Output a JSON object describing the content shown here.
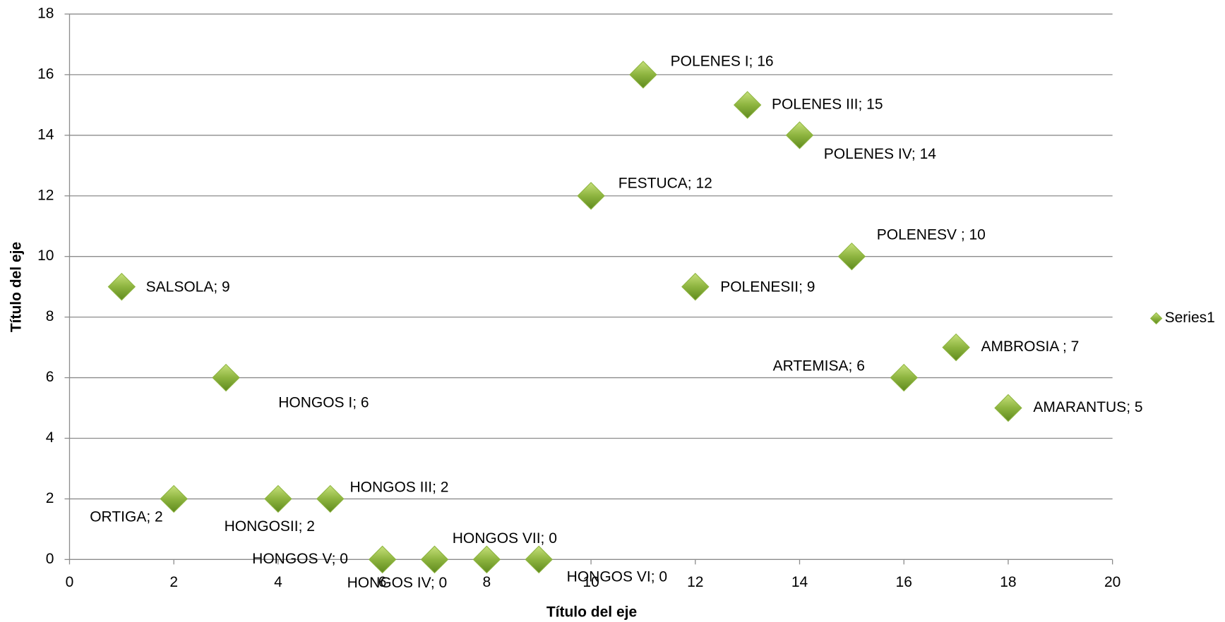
{
  "chart_data": {
    "type": "scatter",
    "x_label": "Título del eje",
    "y_label": "Título del eje",
    "xlim": [
      0,
      20
    ],
    "ylim": [
      0,
      18
    ],
    "xticks": [
      0,
      2,
      4,
      6,
      8,
      10,
      12,
      14,
      16,
      18,
      20
    ],
    "yticks": [
      0,
      2,
      4,
      6,
      8,
      10,
      12,
      14,
      16,
      18
    ],
    "grid": true,
    "legend": "right",
    "series": [
      {
        "name": "Series1",
        "color": "#8db43f",
        "x": [
          1,
          2,
          3,
          4,
          5,
          6,
          7,
          8,
          9,
          10,
          11,
          12,
          13,
          14,
          15,
          16,
          17,
          18
        ],
        "values": [
          9,
          2,
          6,
          2,
          2,
          0,
          0,
          0,
          0,
          12,
          16,
          9,
          15,
          14,
          10,
          6,
          7,
          5
        ],
        "value_labels": [
          "SALSOLA; 9",
          "ORTIGA; 2",
          "HONGOS I; 6",
          "HONGOSII; 2",
          "HONGOS III; 2",
          "HONGOS V; 0",
          "HONGOS IV; 0",
          "HONGOS VII; 0",
          "HONGOS VI; 0",
          "FESTUCA; 12",
          "POLENES I; 16",
          "POLENESII; 9",
          "POLENES III; 15",
          "POLENES IV; 14",
          "POLENESV ; 10",
          "ARTEMISA; 6",
          "AMBROSIA ; 7",
          "AMARANTUS; 5"
        ]
      }
    ]
  }
}
